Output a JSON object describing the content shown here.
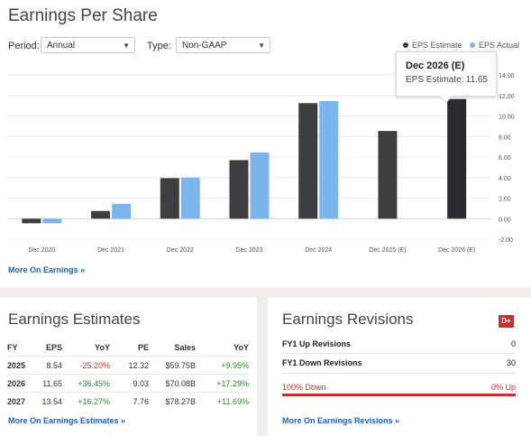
{
  "eps_section": {
    "title": "Earnings Per Share",
    "period_label": "Period:",
    "period_value": "Annual",
    "type_label": "Type:",
    "type_value": "Non-GAAP",
    "legend_estimate": "EPS Estimate",
    "legend_actual": "EPS Actual",
    "tooltip_title": "Dec 2026 (E)",
    "tooltip_label": "EPS Estimate:",
    "tooltip_value": "11.65",
    "more_link": "More On Earnings »",
    "colors": {
      "estimate": "#3e3d40",
      "actual": "#7cb5ec",
      "highlight": "#2b2b2e"
    }
  },
  "chart_data": {
    "type": "bar",
    "categories": [
      "Dec 2020",
      "Dec 2021",
      "Dec 2022",
      "Dec 2023",
      "Dec 2024",
      "Dec 2025 (E)",
      "Dec 2026 (E)"
    ],
    "series": [
      {
        "name": "EPS Estimate",
        "values": [
          -0.45,
          0.75,
          3.95,
          5.7,
          11.25,
          8.54,
          11.65
        ]
      },
      {
        "name": "EPS Actual",
        "values": [
          -0.45,
          1.45,
          4.0,
          6.45,
          11.45,
          null,
          null
        ]
      }
    ],
    "yticks": [
      "14.00",
      "12.00",
      "10.00",
      "8.00",
      "6.00",
      "4.00",
      "2.00",
      "0.00",
      "-2.00"
    ],
    "ylim": [
      -2,
      14
    ],
    "grid": true,
    "legend": "top-right"
  },
  "estimates_section": {
    "title": "Earnings Estimates",
    "columns": [
      "FY",
      "EPS",
      "YoY",
      "PE",
      "Sales",
      "YoY"
    ],
    "rows": [
      {
        "fy": "2025",
        "eps": "8.54",
        "yoy": "-25.20%",
        "pe": "12.32",
        "sales": "$59.75B",
        "sales_yoy": "+9.95%"
      },
      {
        "fy": "2026",
        "eps": "11.65",
        "yoy": "+36.45%",
        "pe": "9.03",
        "sales": "$70.08B",
        "sales_yoy": "+17.29%"
      },
      {
        "fy": "2027",
        "eps": "13.54",
        "yoy": "+16.27%",
        "pe": "7.76",
        "sales": "$78.27B",
        "sales_yoy": "+11.69%"
      }
    ],
    "more_link": "More On Earnings Estimates »"
  },
  "revisions_section": {
    "title": "Earnings Revisions",
    "badge": "D+",
    "up_label": "FY1 Up Revisions",
    "up_value": "0",
    "down_label": "FY1 Down Revisions",
    "down_value": "30",
    "bar_left": "100% Down",
    "bar_right": "0% Up",
    "more_link": "More On Earnings Revisions »"
  }
}
